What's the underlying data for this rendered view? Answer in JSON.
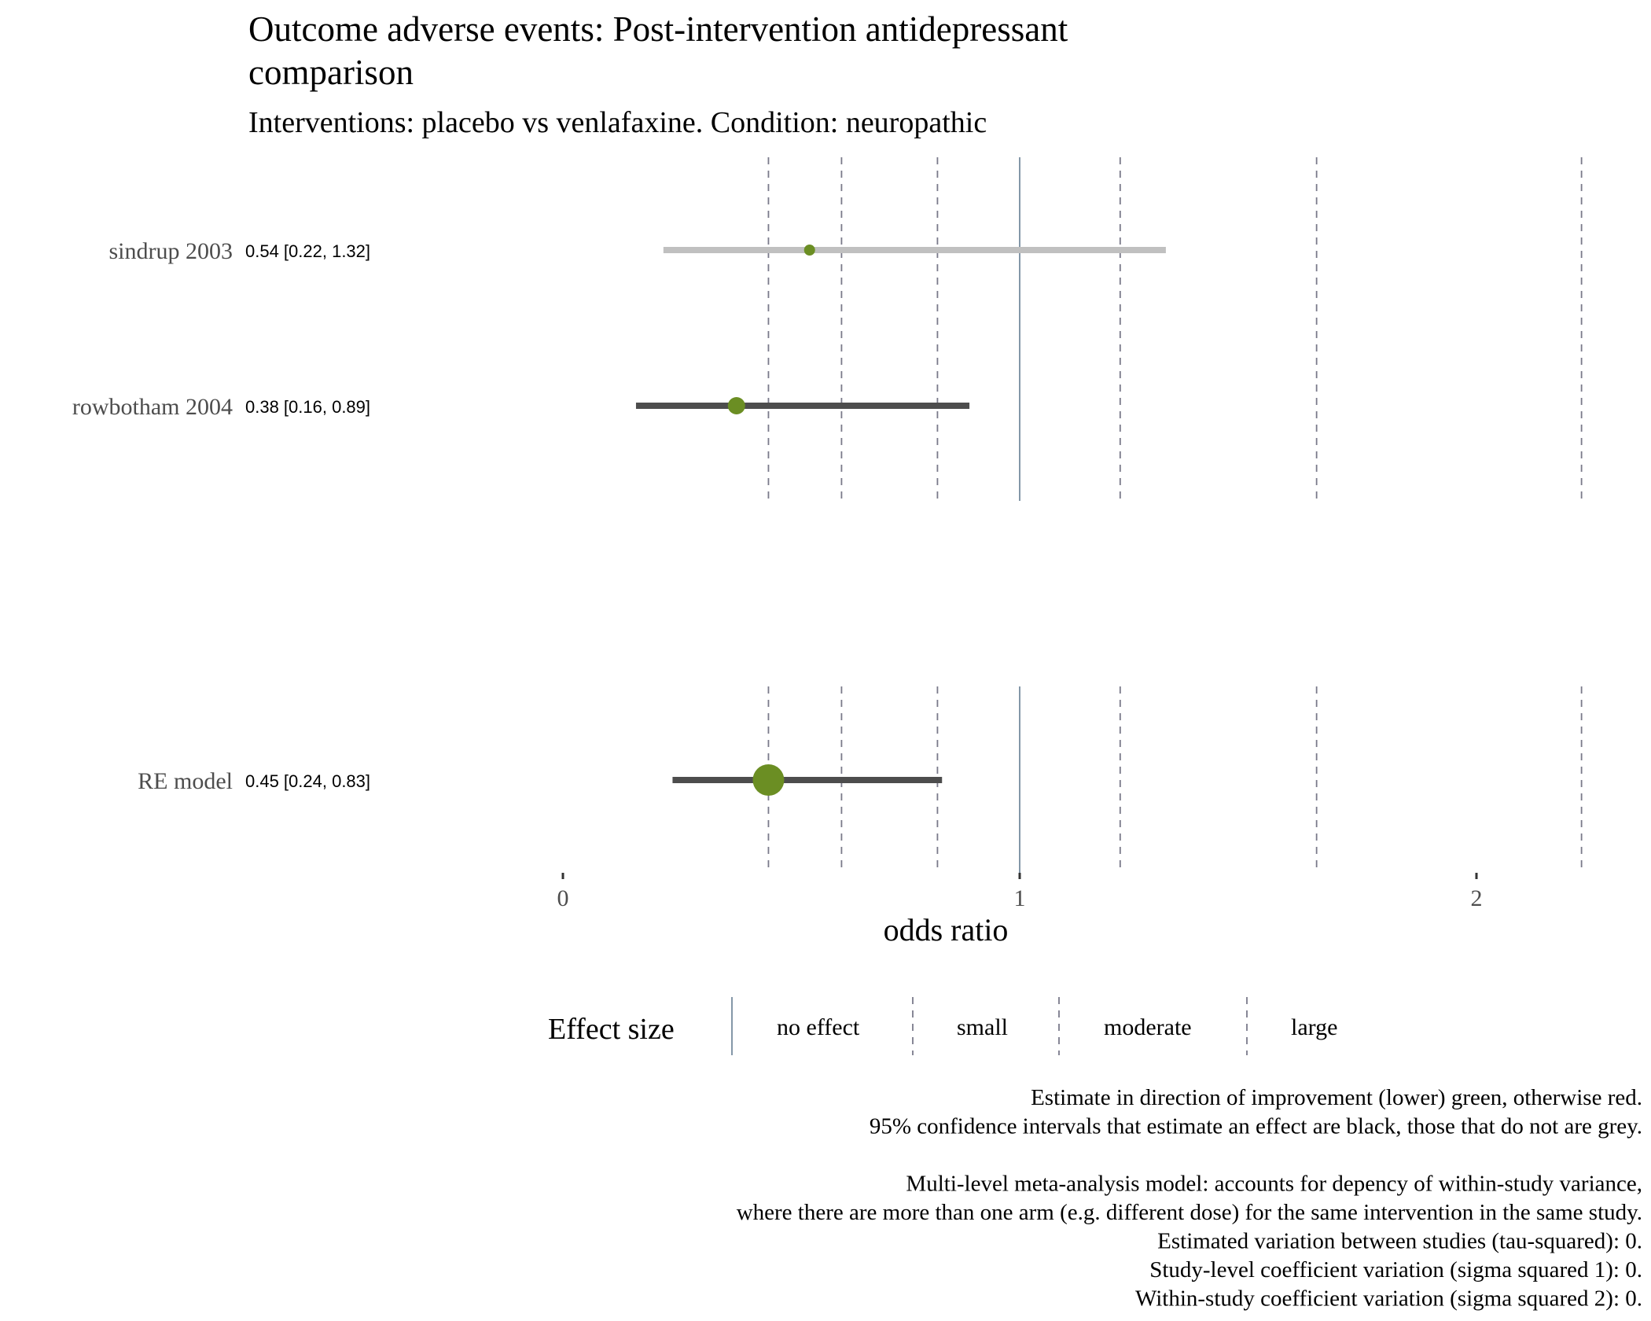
{
  "title_line1": "Outcome adverse events: Post-intervention antidepressant",
  "title_line2": "comparison",
  "subtitle": "Interventions: placebo vs venlafaxine. Condition: neuropathic",
  "chart_data": {
    "type": "forest",
    "xlabel": "odds ratio",
    "xlim": [
      -0.25,
      2.25
    ],
    "x_ticks": [
      0,
      1,
      2
    ],
    "x_tick_labels": [
      "0",
      "1",
      "2"
    ],
    "grid": false,
    "studies": [
      {
        "label": "sindrup 2003",
        "estimate": 0.54,
        "ci": [
          0.22,
          1.32
        ],
        "text": "0.54 [0.22, 1.32]",
        "ci_color": "#c0c0c0",
        "point_color": "#6b8e23",
        "point_size": "small"
      },
      {
        "label": "rowbotham 2004",
        "estimate": 0.38,
        "ci": [
          0.16,
          0.89
        ],
        "text": "0.38 [0.16, 0.89]",
        "ci_color": "#4d4d4d",
        "point_color": "#6b8e23",
        "point_size": "medium"
      }
    ],
    "summary": {
      "label": "RE model",
      "estimate": 0.45,
      "ci": [
        0.24,
        0.83
      ],
      "text": "0.45 [0.24, 0.83]",
      "ci_color": "#4d4d4d",
      "point_color": "#6b8e23",
      "point_size": "large"
    },
    "reference_lines": [
      {
        "value": 0.45,
        "kind": "large"
      },
      {
        "value": 0.61,
        "kind": "moderate"
      },
      {
        "value": 0.82,
        "kind": "small"
      },
      {
        "value": 1.0,
        "kind": "no effect"
      },
      {
        "value": 1.22,
        "kind": "small"
      },
      {
        "value": 1.65,
        "kind": "moderate"
      },
      {
        "value": 2.23,
        "kind": "large"
      }
    ],
    "legend": {
      "title": "Effect size",
      "position": "bottom",
      "items": [
        "no effect",
        "small",
        "moderate",
        "large"
      ]
    }
  },
  "colors": {
    "improvement": "#6b8e23",
    "ci_effect": "#4d4d4d",
    "ci_no_effect": "#c0c0c0",
    "no_effect_line": "#8497a8",
    "dashed_line": "#7a7a8a",
    "text": "#000000",
    "row_label": "#4d4d4d"
  },
  "caption_lines": [
    "Estimate in direction of improvement (lower) green, otherwise red.",
    "95% confidence intervals that estimate an effect are black, those that do not are grey.",
    "",
    "Multi-level meta-analysis model: accounts for depency of within-study variance,",
    "where there are more than one arm (e.g. different dose) for the same intervention in the same study.",
    "Estimated variation between studies (tau-squared): 0.",
    "Study-level coefficient variation (sigma squared 1): 0.",
    "Within-study coefficient variation (sigma squared 2): 0."
  ]
}
